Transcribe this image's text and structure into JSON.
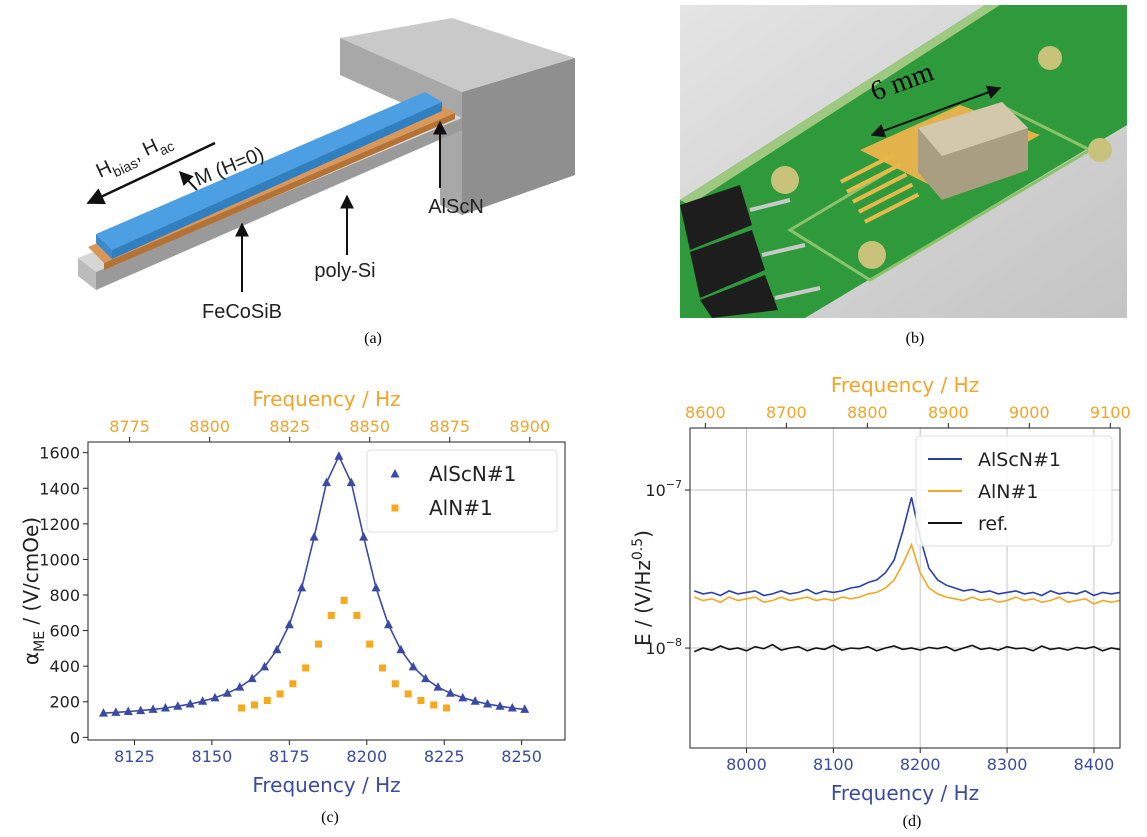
{
  "panel_a": {
    "field_label": [
      {
        "text": "H"
      },
      {
        "text": "bias",
        "script": "sub"
      },
      {
        "text": ", H"
      },
      {
        "text": "ac",
        "script": "sub"
      }
    ],
    "magnetization_label": "M (H=0)",
    "layers": [
      "FeCoSiB",
      "poly-Si",
      "AlScN"
    ],
    "caption": "(a)"
  },
  "panel_b": {
    "dimension_label": "6 mm",
    "caption": "(b)"
  },
  "chart_data": [
    {
      "type": "line",
      "caption": "(c)",
      "xlabel": "Frequency / Hz",
      "xlabel_color": "#3b4ba5",
      "x2label": "Frequency / Hz",
      "x2label_color": "#f4a428",
      "ylabel": [
        {
          "text": "α"
        },
        {
          "text": "ME",
          "script": "sub"
        },
        {
          "text": " / (V/cmOe)"
        }
      ],
      "xlim": [
        8110,
        8264
      ],
      "xticks": [
        8125,
        8150,
        8175,
        8200,
        8225,
        8250
      ],
      "x2lim": [
        8762,
        8911
      ],
      "x2ticks": [
        8775,
        8800,
        8825,
        8850,
        8875,
        8900
      ],
      "ylim": [
        -15,
        1660
      ],
      "yticks": [
        0,
        200,
        400,
        600,
        800,
        1000,
        1200,
        1400,
        1600
      ],
      "yscale": "linear",
      "grid": false,
      "legend": "upper right",
      "series": [
        {
          "name": "AlScN#1",
          "color": "#3b4ba5",
          "line": true,
          "marker": "triangle",
          "x": [
            8115,
            8119,
            8123,
            8127,
            8131,
            8135,
            8139,
            8143,
            8147,
            8151,
            8155,
            8159,
            8163,
            8167,
            8171,
            8175,
            8179,
            8183,
            8187,
            8191,
            8195,
            8199,
            8203,
            8207,
            8211,
            8215,
            8219,
            8223,
            8227,
            8231,
            8235,
            8239,
            8243,
            8247,
            8251
          ],
          "values": [
            136,
            140,
            145,
            150,
            157,
            165,
            175,
            187,
            203,
            222,
            248,
            282,
            330,
            396,
            492,
            633,
            840,
            1125,
            1432,
            1580,
            1432,
            1125,
            840,
            633,
            492,
            396,
            330,
            282,
            248,
            222,
            203,
            187,
            175,
            165,
            157
          ]
        },
        {
          "name": "AlN#1",
          "color": "#f7a81b",
          "line": false,
          "marker": "square",
          "axis": "x2",
          "x": [
            8810,
            8814,
            8818,
            8822,
            8826,
            8830,
            8834,
            8838,
            8842,
            8846,
            8850,
            8854,
            8858,
            8862,
            8866,
            8870,
            8874
          ],
          "values": [
            165,
            182,
            207,
            244,
            301,
            390,
            524,
            685,
            770,
            685,
            524,
            390,
            301,
            244,
            207,
            182,
            165
          ]
        }
      ]
    },
    {
      "type": "line",
      "caption": "(d)",
      "xlabel": "Frequency / Hz",
      "xlabel_color": "#3b4ba5",
      "x2label": "Frequency / Hz",
      "x2label_color": "#f4a428",
      "ylabel": [
        {
          "text": "E / (V/Hz"
        },
        {
          "text": "0.5",
          "script": "sup"
        },
        {
          "text": ")"
        }
      ],
      "xlim": [
        7935,
        8430
      ],
      "xticks": [
        8000,
        8100,
        8200,
        8300,
        8400
      ],
      "x2lim": [
        8581,
        9112
      ],
      "x2ticks": [
        8600,
        8700,
        8800,
        8900,
        9000,
        9100
      ],
      "ylim": [
        2.33e-09,
        2.47e-07
      ],
      "yticks": [
        {
          "value": 1e-07,
          "label": "10",
          "exponent": "−7"
        },
        {
          "value": 1e-08,
          "label": "10",
          "exponent": "−8"
        }
      ],
      "yscale": "log",
      "grid": true,
      "legend": "upper right",
      "x": [
        7940,
        7950,
        7960,
        7970,
        7980,
        7990,
        8000,
        8010,
        8020,
        8030,
        8040,
        8050,
        8060,
        8070,
        8080,
        8090,
        8100,
        8110,
        8120,
        8130,
        8140,
        8150,
        8160,
        8170,
        8180,
        8190,
        8200,
        8210,
        8220,
        8230,
        8240,
        8250,
        8260,
        8270,
        8280,
        8290,
        8300,
        8310,
        8320,
        8330,
        8340,
        8350,
        8360,
        8370,
        8380,
        8390,
        8400,
        8410,
        8420,
        8430
      ],
      "series": [
        {
          "name": "AlScN#1",
          "color": "#2a3fae",
          "line": true,
          "values": [
            2.3e-08,
            2.2e-08,
            2.25e-08,
            2.15e-08,
            2.3e-08,
            2.2e-08,
            2.25e-08,
            2.3e-08,
            2.15e-08,
            2.2e-08,
            2.3e-08,
            2.2e-08,
            2.25e-08,
            2.35e-08,
            2.2e-08,
            2.3e-08,
            2.25e-08,
            2.3e-08,
            2.4e-08,
            2.45e-08,
            2.6e-08,
            2.7e-08,
            3e-08,
            3.6e-08,
            5.5e-08,
            9e-08,
            5e-08,
            3.2e-08,
            2.7e-08,
            2.5e-08,
            2.4e-08,
            2.3e-08,
            2.35e-08,
            2.25e-08,
            2.3e-08,
            2.2e-08,
            2.25e-08,
            2.3e-08,
            2.2e-08,
            2.25e-08,
            2.15e-08,
            2.3e-08,
            2.2e-08,
            2.25e-08,
            2.2e-08,
            2.3e-08,
            2.15e-08,
            2.25e-08,
            2.2e-08,
            2.25e-08
          ]
        },
        {
          "name": "AlN#1",
          "color": "#f5a623",
          "line": true,
          "values": [
            2.1e-08,
            2e-08,
            2.05e-08,
            1.95e-08,
            2.1e-08,
            2e-08,
            2.05e-08,
            2.1e-08,
            1.95e-08,
            2e-08,
            2.1e-08,
            2e-08,
            2.05e-08,
            2.1e-08,
            2e-08,
            2.05e-08,
            2e-08,
            2.1e-08,
            2.05e-08,
            2.1e-08,
            2.2e-08,
            2.25e-08,
            2.4e-08,
            2.7e-08,
            3.4e-08,
            4.5e-08,
            3e-08,
            2.4e-08,
            2.2e-08,
            2.1e-08,
            2.05e-08,
            2e-08,
            2.1e-08,
            2e-08,
            2.05e-08,
            1.95e-08,
            2e-08,
            2.1e-08,
            2e-08,
            2.05e-08,
            1.95e-08,
            2e-08,
            2.1e-08,
            1.95e-08,
            2e-08,
            2.05e-08,
            1.9e-08,
            2e-08,
            1.95e-08,
            2e-08
          ]
        },
        {
          "name": "ref.",
          "color": "#111111",
          "line": true,
          "values": [
            9.5e-09,
            1e-08,
            9.7e-09,
            1.03e-08,
            9.8e-09,
            1e-08,
            9.6e-09,
            1.02e-08,
            9.9e-09,
            1.05e-08,
            9.7e-09,
            1e-08,
            1.02e-08,
            9.6e-09,
            1e-08,
            9.8e-09,
            1.04e-08,
            9.7e-09,
            1e-08,
            9.9e-09,
            1.02e-08,
            9.6e-09,
            1e-08,
            1.03e-08,
            9.8e-09,
            1e-08,
            9.7e-09,
            1.01e-08,
            9.9e-09,
            1.02e-08,
            9.6e-09,
            1e-08,
            1.04e-08,
            9.8e-09,
            1e-08,
            9.7e-09,
            1.02e-08,
            9.9e-09,
            1e-08,
            9.6e-09,
            1.03e-08,
            9.8e-09,
            1e-08,
            9.7e-09,
            1.01e-08,
            9.9e-09,
            1.02e-08,
            9.6e-09,
            1e-08,
            9.8e-09
          ]
        }
      ]
    }
  ]
}
